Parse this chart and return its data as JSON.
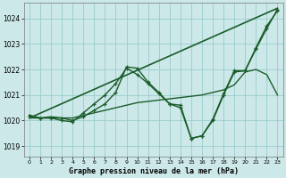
{
  "background_color": "#cce8e8",
  "grid_color": "#99cccc",
  "line_color": "#1a5c2a",
  "title": "Graphe pression niveau de la mer (hPa)",
  "xlim": [
    -0.5,
    23.5
  ],
  "ylim": [
    1018.6,
    1024.6
  ],
  "yticks": [
    1019,
    1020,
    1021,
    1022,
    1023,
    1024
  ],
  "xticks": [
    0,
    1,
    2,
    3,
    4,
    5,
    6,
    7,
    8,
    9,
    10,
    11,
    12,
    13,
    14,
    15,
    16,
    17,
    18,
    19,
    20,
    21,
    22,
    23
  ],
  "series": [
    {
      "x": [
        0,
        23
      ],
      "y": [
        1020.1,
        1024.4
      ],
      "marker": false,
      "lw": 1.2
    },
    {
      "x": [
        0,
        1,
        2,
        3,
        4,
        5,
        6,
        7,
        8,
        9,
        10,
        11,
        12,
        13,
        14,
        15,
        16,
        17,
        18,
        19,
        20,
        21,
        22,
        23
      ],
      "y": [
        1020.1,
        1020.1,
        1020.15,
        1020.1,
        1020.1,
        1020.2,
        1020.3,
        1020.4,
        1020.5,
        1020.6,
        1020.7,
        1020.75,
        1020.8,
        1020.85,
        1020.9,
        1020.95,
        1021.0,
        1021.1,
        1021.2,
        1021.4,
        1021.9,
        1022.0,
        1021.8,
        1021.0
      ],
      "marker": false,
      "lw": 1.0
    },
    {
      "x": [
        0,
        1,
        2,
        3,
        4,
        5,
        6,
        7,
        8,
        9,
        10,
        11,
        12,
        13,
        14,
        15,
        16,
        17,
        18,
        19,
        20,
        21,
        22,
        23
      ],
      "y": [
        1020.2,
        1020.1,
        1020.1,
        1020.0,
        1019.95,
        1020.3,
        1020.65,
        1021.0,
        1021.45,
        1022.05,
        1021.8,
        1021.45,
        1021.05,
        1020.65,
        1020.5,
        1019.3,
        1019.4,
        1020.0,
        1021.0,
        1021.9,
        1021.95,
        1022.85,
        1023.7,
        1024.3
      ],
      "marker": true,
      "lw": 1.0
    },
    {
      "x": [
        0,
        1,
        3,
        4,
        5,
        6,
        7,
        8,
        9,
        10,
        11,
        12,
        13,
        14,
        15,
        16,
        17,
        18,
        19,
        20,
        21,
        22,
        23
      ],
      "y": [
        1020.2,
        1020.1,
        1020.1,
        1020.0,
        1020.15,
        1020.4,
        1020.65,
        1021.1,
        1022.1,
        1022.05,
        1021.5,
        1021.1,
        1020.65,
        1020.6,
        1019.3,
        1019.4,
        1020.05,
        1021.05,
        1021.95,
        1021.95,
        1022.8,
        1023.6,
        1024.35
      ],
      "marker": true,
      "lw": 1.0
    }
  ]
}
